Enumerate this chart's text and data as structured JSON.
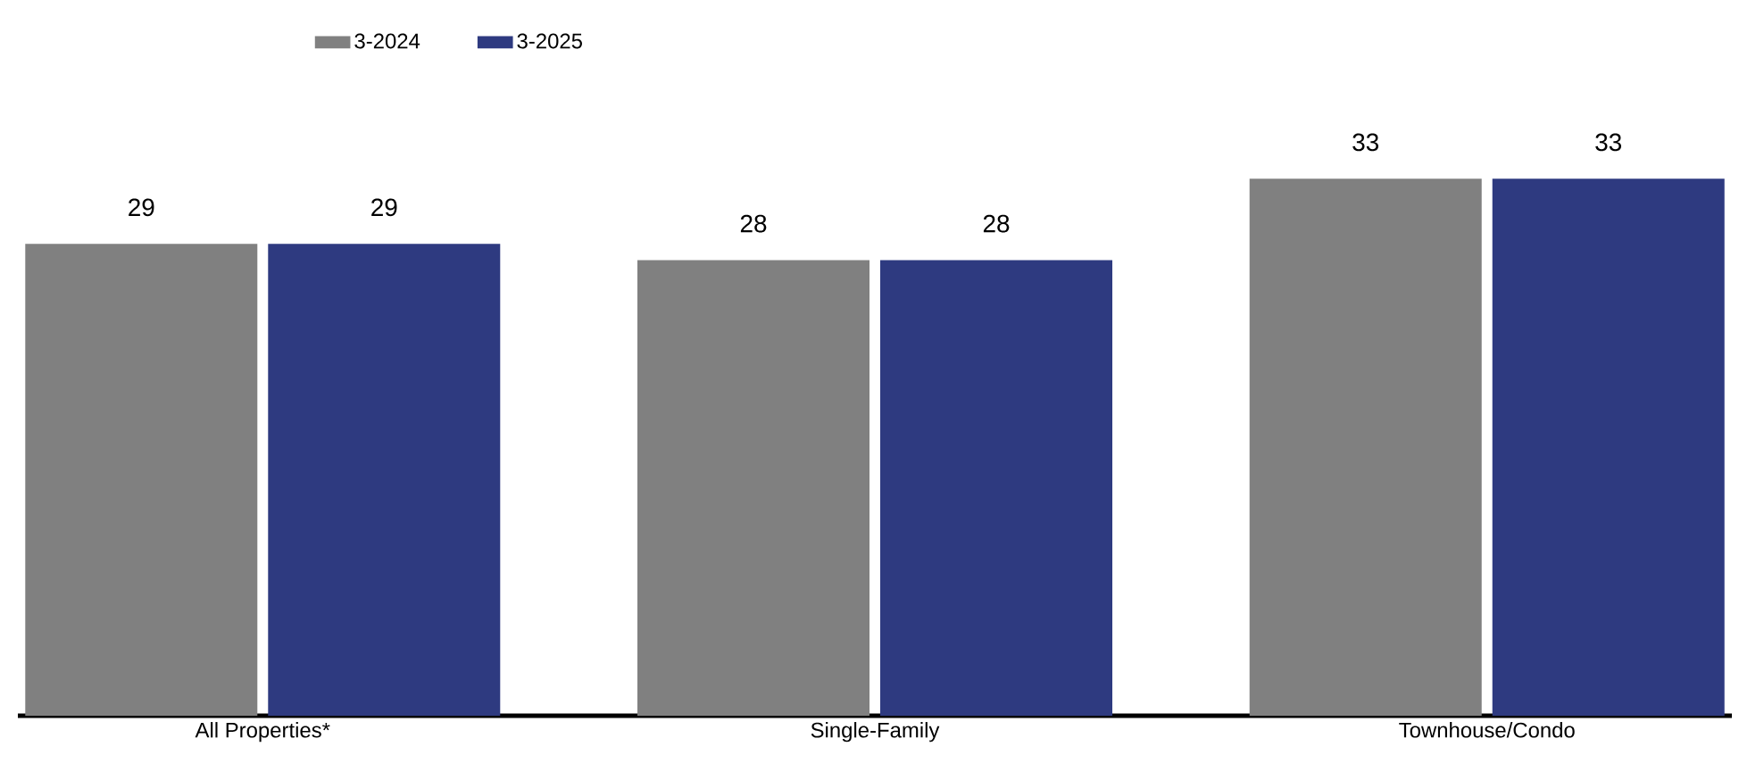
{
  "chart_data": {
    "type": "bar",
    "categories": [
      "All Properties*",
      "Single-Family",
      "Townhouse/Condo"
    ],
    "series": [
      {
        "name": "3-2024",
        "color": "#808080",
        "values": [
          29,
          28,
          33
        ]
      },
      {
        "name": "3-2025",
        "color": "#2e3a80",
        "values": [
          29,
          28,
          33
        ]
      }
    ],
    "data_labels": true,
    "legend": "top left"
  }
}
